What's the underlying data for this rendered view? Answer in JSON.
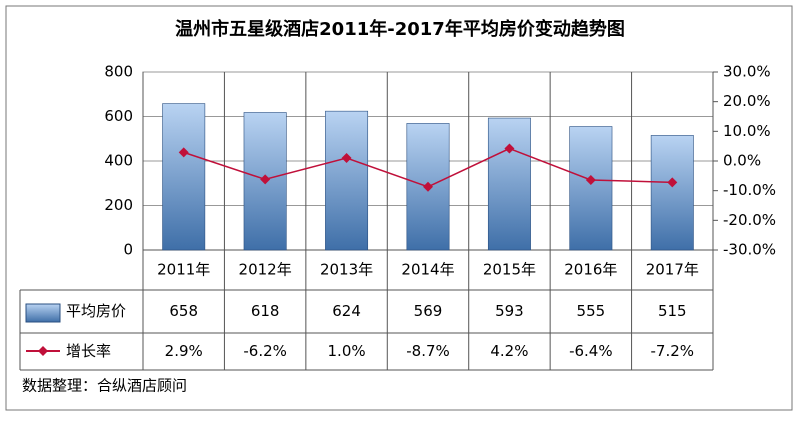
{
  "chart_data": {
    "type": "bar-line",
    "title": "温州市五星级酒店2011年-2017年平均房价变动趋势图",
    "categories": [
      "2011年",
      "2012年",
      "2013年",
      "2014年",
      "2015年",
      "2016年",
      "2017年"
    ],
    "series": [
      {
        "name": "平均房价",
        "color": "#4f81bd",
        "values": [
          658,
          618,
          624,
          569,
          593,
          555,
          515
        ]
      },
      {
        "name": "增长率",
        "color": "#c0103a",
        "axis": "y2",
        "values": [
          2.9,
          -6.2,
          1.0,
          -8.7,
          4.2,
          -6.4,
          -7.2
        ],
        "value_labels": [
          "2.9%",
          "-6.2%",
          "1.0%",
          "-8.7%",
          "4.2%",
          "-6.4%",
          "-7.2%"
        ]
      }
    ],
    "ylim": [
      0,
      800
    ],
    "yticks": [
      0,
      200,
      400,
      600,
      800
    ],
    "y2lim": [
      -30,
      30
    ],
    "y2ticks": [
      {
        "value": -30,
        "label": "-30.0%"
      },
      {
        "value": -20,
        "label": "-20.0%"
      },
      {
        "value": -10,
        "label": "-10.0%"
      },
      {
        "value": 0,
        "label": "0.0%"
      },
      {
        "value": 10,
        "label": "10.0%"
      },
      {
        "value": 20,
        "label": "20.0%"
      },
      {
        "value": 30,
        "label": "30.0%"
      }
    ],
    "grid": true,
    "source": "数据整理：合纵酒店顾问"
  }
}
